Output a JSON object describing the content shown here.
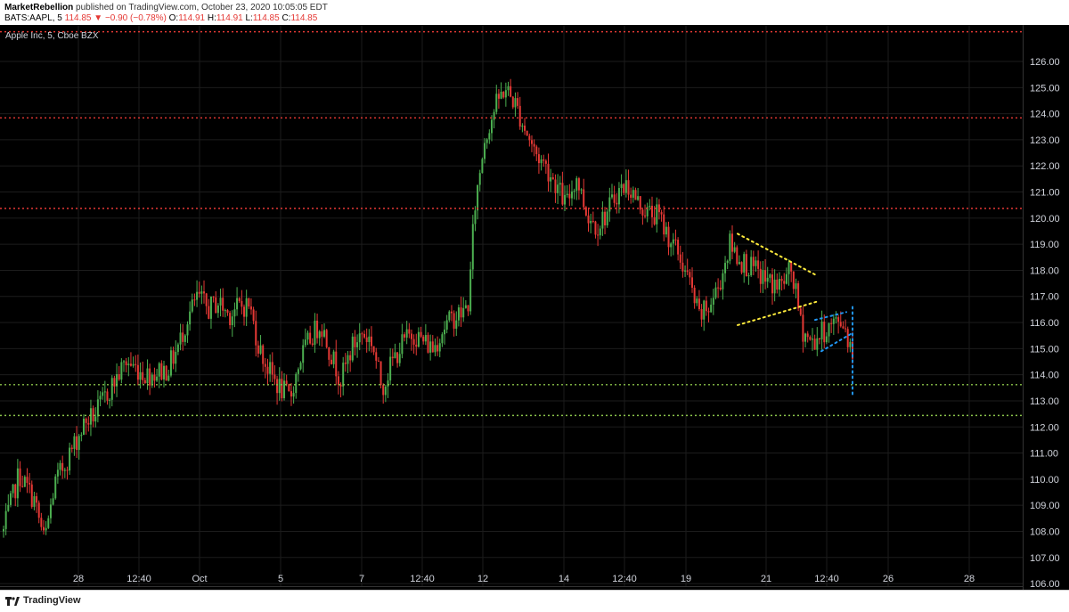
{
  "header": {
    "publisher": "MarketRebellion",
    "published_text": "published on TradingView.com, October 23, 2020 10:05:05 EDT",
    "symbol": "BATS:AAPL, 5",
    "last": "114.85",
    "change_arrow": "▼",
    "change": "−0.90 (−0.78%)",
    "o_label": "O:",
    "o_value": "114.91",
    "h_label": "H:",
    "h_value": "114.91",
    "l_label": "L:",
    "l_value": "114.85",
    "c_label": "C:",
    "c_value": "114.85"
  },
  "footer": {
    "brand": "TradingView"
  },
  "colors": {
    "background": "#000000",
    "up": "#4caf50",
    "down": "#e53935",
    "grid": "#1c1c1c",
    "resistance": "#e53935",
    "support": "#8bc34a",
    "triangle": "#ffeb3b",
    "wedge": "#2196f3"
  },
  "chart_data": {
    "type": "candlestick",
    "title": "Apple Inc, 5, Cboe BZX",
    "ylim": [
      105.9,
      127.4
    ],
    "y_ticks": [
      106.0,
      107.0,
      108.0,
      109.0,
      110.0,
      111.0,
      112.0,
      113.0,
      114.0,
      115.0,
      116.0,
      117.0,
      118.0,
      119.0,
      120.0,
      121.0,
      122.0,
      123.0,
      124.0,
      125.0,
      126.0
    ],
    "x_ticks": [
      "28",
      "12:40",
      "Oct",
      "5",
      "7",
      "12:40",
      "12",
      "14",
      "12:40",
      "19",
      "21",
      "12:40",
      "26",
      "28"
    ],
    "horizontal_levels": [
      {
        "value": 127.14,
        "label": "127.14",
        "kind": "resistance"
      },
      {
        "value": 123.84,
        "label": "123.84",
        "kind": "resistance"
      },
      {
        "value": 120.37,
        "label": "120.37",
        "kind": "resistance"
      },
      {
        "value": 113.62,
        "label": "113.62",
        "kind": "support"
      },
      {
        "value": 112.44,
        "label": "112.44",
        "kind": "support"
      }
    ],
    "approx_path": [
      [
        0,
        108.0
      ],
      [
        3,
        110.2
      ],
      [
        6,
        109.2
      ],
      [
        8,
        107.6
      ],
      [
        10,
        109.8
      ],
      [
        12,
        110.6
      ],
      [
        16,
        112.2
      ],
      [
        18,
        112.5
      ],
      [
        20,
        113.2
      ],
      [
        24,
        114.5
      ],
      [
        28,
        114.0
      ],
      [
        32,
        114.2
      ],
      [
        34,
        115.0
      ],
      [
        36,
        116.2
      ],
      [
        38,
        117.0
      ],
      [
        40,
        116.5
      ],
      [
        42,
        116.8
      ],
      [
        44,
        116.3
      ],
      [
        46,
        116.6
      ],
      [
        48,
        116.7
      ],
      [
        50,
        115.0
      ],
      [
        52,
        114.1
      ],
      [
        54,
        113.5
      ],
      [
        56,
        113.1
      ],
      [
        58,
        114.6
      ],
      [
        60,
        115.4
      ],
      [
        62,
        116.0
      ],
      [
        64,
        114.8
      ],
      [
        66,
        113.8
      ],
      [
        68,
        115.0
      ],
      [
        70,
        115.6
      ],
      [
        72,
        115.3
      ],
      [
        74,
        113.5
      ],
      [
        76,
        114.5
      ],
      [
        78,
        115.2
      ],
      [
        80,
        115.6
      ],
      [
        82,
        115.3
      ],
      [
        84,
        115.0
      ],
      [
        86,
        115.8
      ],
      [
        88,
        116.2
      ],
      [
        90,
        116.4
      ],
      [
        91,
        116.8
      ],
      [
        92,
        120.2
      ],
      [
        94,
        123.0
      ],
      [
        96,
        124.2
      ],
      [
        98,
        125.0
      ],
      [
        100,
        124.4
      ],
      [
        102,
        123.4
      ],
      [
        104,
        122.5
      ],
      [
        106,
        122.0
      ],
      [
        108,
        121.3
      ],
      [
        110,
        120.5
      ],
      [
        112,
        121.6
      ],
      [
        114,
        120.2
      ],
      [
        116,
        119.7
      ],
      [
        118,
        120.2
      ],
      [
        120,
        121.0
      ],
      [
        122,
        121.3
      ],
      [
        124,
        120.6
      ],
      [
        126,
        120.2
      ],
      [
        128,
        120.1
      ],
      [
        130,
        119.3
      ],
      [
        132,
        118.6
      ],
      [
        134,
        117.6
      ],
      [
        136,
        116.2
      ],
      [
        138,
        116.6
      ],
      [
        140,
        117.5
      ],
      [
        142,
        119.0
      ],
      [
        144,
        118.4
      ],
      [
        146,
        118.1
      ],
      [
        148,
        117.8
      ],
      [
        150,
        117.5
      ],
      [
        152,
        117.4
      ],
      [
        154,
        118.0
      ],
      [
        155,
        117.0
      ],
      [
        156,
        115.8
      ],
      [
        158,
        115.2
      ],
      [
        160,
        115.6
      ],
      [
        162,
        115.9
      ],
      [
        164,
        116.1
      ],
      [
        165,
        115.5
      ],
      [
        166,
        114.85
      ]
    ]
  }
}
